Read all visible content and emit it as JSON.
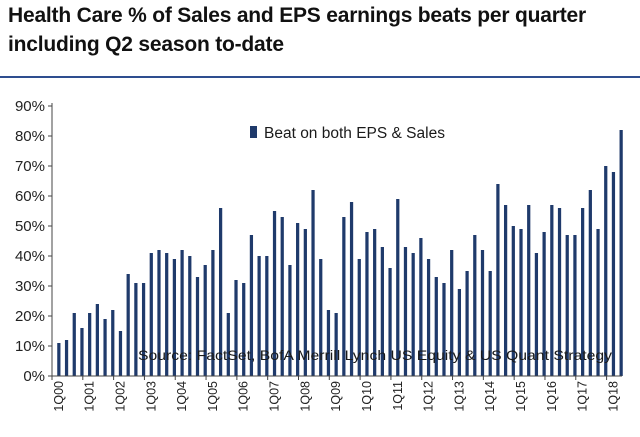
{
  "title_lines": [
    "Health Care % of Sales and EPS earnings beats per quarter",
    "including Q2 season to-date"
  ],
  "colors": {
    "bar": "#1f3a6b",
    "rule": "#2e4d8f",
    "text": "#111111",
    "axis": "#444444"
  },
  "chart_data": {
    "type": "bar",
    "title": "Health Care % of Sales and EPS earnings beats per quarter including Q2 season to-date",
    "ylabel": "",
    "xlabel": "",
    "ylim": [
      0,
      90
    ],
    "y_ticks": [
      "0%",
      "10%",
      "20%",
      "30%",
      "40%",
      "50%",
      "60%",
      "70%",
      "80%",
      "90%"
    ],
    "legend": "Beat on both EPS & Sales",
    "source": "Source: FactSet, BofA Merrill Lynch US Equity & US Quant Strategy",
    "series": [
      {
        "name": "Beat on both EPS & Sales",
        "values": [
          11,
          12,
          21,
          16,
          21,
          24,
          19,
          22,
          15,
          34,
          31,
          31,
          41,
          42,
          41,
          39,
          42,
          40,
          33,
          37,
          42,
          56,
          21,
          32,
          31,
          47,
          40,
          40,
          55,
          53,
          37,
          51,
          49,
          62,
          39,
          22,
          21,
          53,
          58,
          39,
          48,
          49,
          43,
          36,
          59,
          43,
          41,
          46,
          39,
          33,
          31,
          42,
          29,
          35,
          47,
          42,
          35,
          64,
          57,
          50,
          49,
          57,
          41,
          48,
          57,
          56,
          47,
          47,
          56,
          62,
          49,
          70,
          68,
          82
        ]
      }
    ],
    "x_tick_labels": [
      "1Q00",
      "1Q01",
      "1Q02",
      "1Q03",
      "1Q04",
      "1Q05",
      "1Q06",
      "1Q07",
      "1Q08",
      "1Q09",
      "1Q10",
      "1Q11",
      "1Q12",
      "1Q13",
      "1Q14",
      "1Q15",
      "1Q16",
      "1Q17",
      "1Q18"
    ]
  }
}
